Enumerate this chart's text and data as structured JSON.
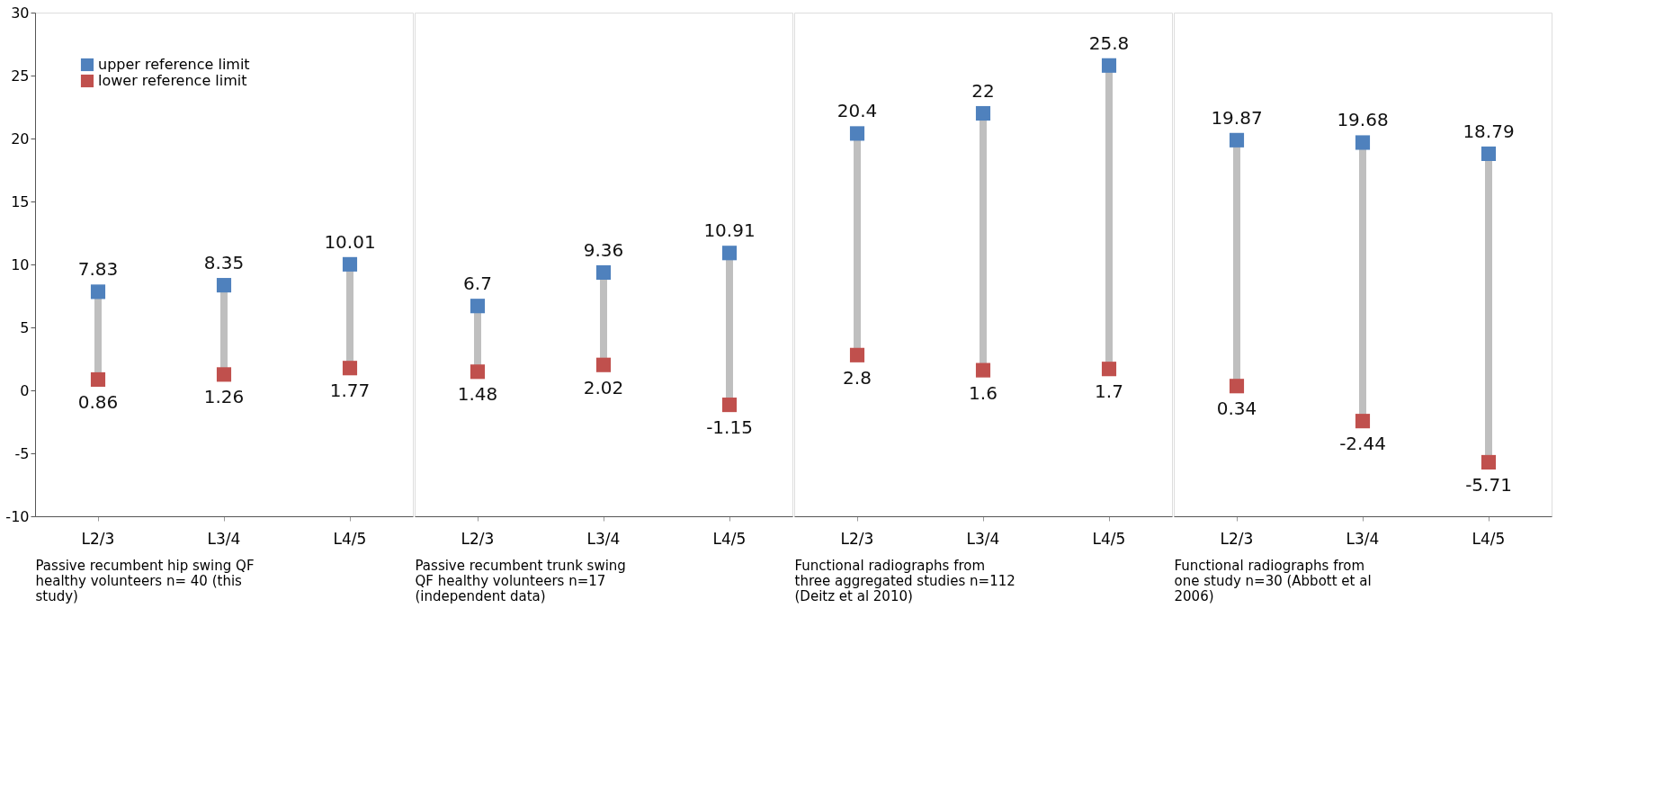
{
  "chart_data": [
    {
      "type": "scatter",
      "categories": [
        "L2/3",
        "L3/4",
        "L4/5"
      ],
      "xlabel": "Passive recumbent hip swing QF healthy volunteers n= 40 (this study)",
      "ylim": [
        -10,
        30
      ],
      "yticks": [
        -10,
        -5,
        0,
        5,
        10,
        15,
        20,
        25,
        30
      ],
      "marker": "square",
      "data_labels": true,
      "legend": "top left",
      "series": [
        {
          "name": "upper reference limit",
          "color": "#4f81bd",
          "values": [
            7.83,
            8.35,
            10.01
          ]
        },
        {
          "name": "lower reference limit",
          "color": "#c0504d",
          "values": [
            0.86,
            1.26,
            1.77
          ]
        }
      ]
    },
    {
      "type": "scatter",
      "categories": [
        "L2/3",
        "L3/4",
        "L4/5"
      ],
      "xlabel": "Passive recumbent trunk swing QF healthy volunteers n=17 (independent data)",
      "ylim": [
        -10,
        30
      ],
      "yticks": [
        -10,
        -5,
        0,
        5,
        10,
        15,
        20,
        25,
        30
      ],
      "marker": "square",
      "data_labels": true,
      "tick_labels": "x",
      "series": [
        {
          "color": "#4f81bd",
          "values": [
            6.7,
            9.36,
            10.91
          ]
        },
        {
          "color": "#c0504d",
          "values": [
            1.48,
            2.02,
            -1.15
          ]
        }
      ]
    },
    {
      "type": "scatter",
      "categories": [
        "L2/3",
        "L3/4",
        "L4/5"
      ],
      "xlabel": "Functional radiographs from three aggregated studies n=112 (Deitz et al 2010)",
      "ylim": [
        -10,
        30
      ],
      "yticks": [
        -10,
        -5,
        0,
        5,
        10,
        15,
        20,
        25,
        30
      ],
      "marker": "square",
      "data_labels": true,
      "tick_labels": "x",
      "series": [
        {
          "color": "#4f81bd",
          "values": [
            20.4,
            22,
            25.8
          ]
        },
        {
          "color": "#c0504d",
          "values": [
            2.8,
            1.6,
            1.7
          ]
        }
      ]
    },
    {
      "type": "scatter",
      "categories": [
        "L2/3",
        "L3/4",
        "L4/5"
      ],
      "xlabel": "Functional radiographs from one study n=30 (Abbott et al 2006)",
      "ylim": [
        -10,
        30
      ],
      "yticks": [
        -10,
        -5,
        0,
        5,
        10,
        15,
        20,
        25,
        30
      ],
      "marker": "square",
      "data_labels": true,
      "tick_labels": "x",
      "series": [
        {
          "color": "#4f81bd",
          "values": [
            19.87,
            19.68,
            18.79
          ]
        },
        {
          "color": "#c0504d",
          "values": [
            0.34,
            -2.44,
            -5.71
          ]
        }
      ]
    }
  ]
}
